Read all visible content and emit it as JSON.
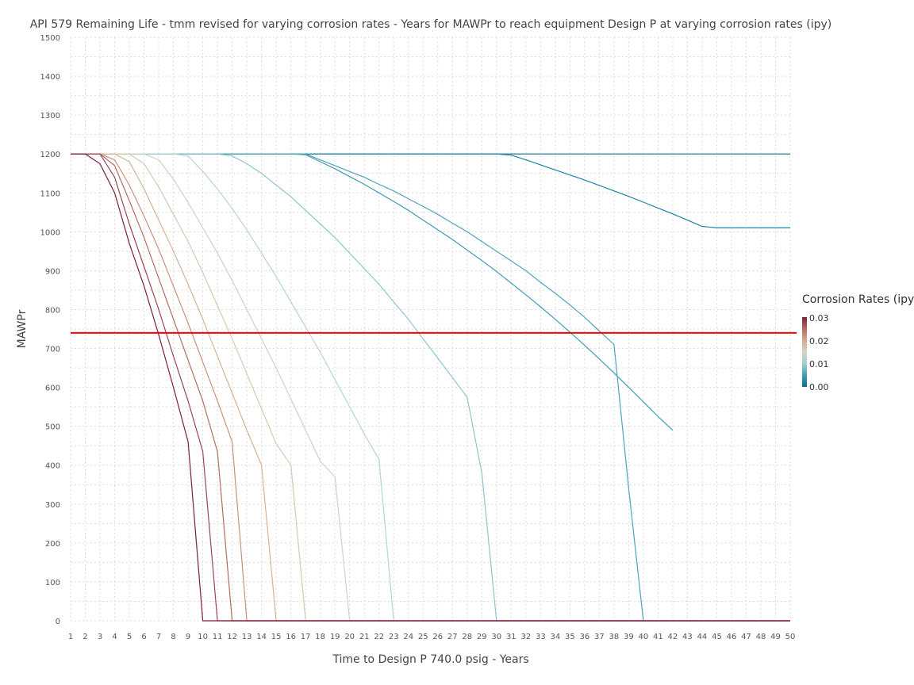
{
  "chart_data": {
    "type": "line",
    "title": "API 579 Remaining Life - tmm revised for varying corrosion rates - Years for MAWPr to reach equipment Design P at varying corrosion rates (ipy)",
    "xlabel": "Time to Design P 740.0 psig - Years",
    "ylabel": "MAWPr",
    "xlim": [
      1,
      50
    ],
    "ylim": [
      0,
      1500
    ],
    "x_ticks": [
      1,
      2,
      3,
      4,
      5,
      6,
      7,
      8,
      9,
      10,
      11,
      12,
      13,
      14,
      15,
      16,
      17,
      18,
      19,
      20,
      21,
      22,
      23,
      24,
      25,
      26,
      27,
      28,
      29,
      30,
      31,
      32,
      33,
      34,
      35,
      36,
      37,
      38,
      39,
      40,
      41,
      42,
      43,
      44,
      45,
      46,
      47,
      48,
      49,
      50
    ],
    "y_ticks": [
      0,
      100,
      200,
      300,
      400,
      500,
      600,
      700,
      800,
      900,
      1000,
      1100,
      1200,
      1300,
      1400,
      1500
    ],
    "grid": true,
    "reference_line": {
      "y": 740,
      "color": "#ff0000"
    },
    "legend": {
      "title": "Corrosion Rates (ipy)",
      "placement": "right",
      "ticks": [
        "0.03",
        "0.02",
        "0.01",
        "0.00"
      ],
      "colorscale": [
        "#0f6e96",
        "#3e9fb2",
        "#9fcfd2",
        "#d7d3c1",
        "#d4a98f",
        "#b56b62",
        "#7c1e3e"
      ]
    },
    "series": [
      {
        "rate": 0.03,
        "color": "#7c1e3e",
        "points": [
          [
            1,
            1200
          ],
          [
            2,
            1200
          ],
          [
            3,
            1175
          ],
          [
            4,
            1100
          ],
          [
            5,
            970
          ],
          [
            6,
            860
          ],
          [
            7,
            735
          ],
          [
            8,
            600
          ],
          [
            9,
            460
          ],
          [
            10,
            0
          ],
          [
            50,
            0
          ]
        ]
      },
      {
        "rate": 0.027,
        "color": "#9a4650",
        "points": [
          [
            1,
            1200
          ],
          [
            2,
            1200
          ],
          [
            3,
            1200
          ],
          [
            4,
            1140
          ],
          [
            5,
            1020
          ],
          [
            6,
            910
          ],
          [
            7,
            800
          ],
          [
            8,
            680
          ],
          [
            9,
            565
          ],
          [
            10,
            435
          ],
          [
            11,
            0
          ],
          [
            50,
            0
          ]
        ]
      },
      {
        "rate": 0.024,
        "color": "#b56b62",
        "points": [
          [
            1,
            1200
          ],
          [
            2,
            1200
          ],
          [
            3,
            1200
          ],
          [
            4,
            1170
          ],
          [
            5,
            1080
          ],
          [
            6,
            985
          ],
          [
            7,
            880
          ],
          [
            8,
            775
          ],
          [
            9,
            670
          ],
          [
            10,
            565
          ],
          [
            11,
            435
          ],
          [
            12,
            0
          ],
          [
            50,
            0
          ]
        ]
      },
      {
        "rate": 0.021,
        "color": "#c8917b",
        "points": [
          [
            1,
            1200
          ],
          [
            2,
            1200
          ],
          [
            3,
            1200
          ],
          [
            4,
            1185
          ],
          [
            5,
            1120
          ],
          [
            6,
            1040
          ],
          [
            7,
            955
          ],
          [
            8,
            860
          ],
          [
            9,
            765
          ],
          [
            10,
            665
          ],
          [
            11,
            565
          ],
          [
            12,
            460
          ],
          [
            13,
            0
          ],
          [
            50,
            0
          ]
        ]
      },
      {
        "rate": 0.018,
        "color": "#d4b296",
        "points": [
          [
            1,
            1200
          ],
          [
            2,
            1200
          ],
          [
            3,
            1200
          ],
          [
            4,
            1200
          ],
          [
            5,
            1180
          ],
          [
            6,
            1110
          ],
          [
            7,
            1030
          ],
          [
            8,
            950
          ],
          [
            9,
            865
          ],
          [
            10,
            775
          ],
          [
            11,
            680
          ],
          [
            12,
            585
          ],
          [
            13,
            490
          ],
          [
            14,
            400
          ],
          [
            15,
            0
          ],
          [
            50,
            0
          ]
        ]
      },
      {
        "rate": 0.015,
        "color": "#d6c9b2",
        "points": [
          [
            1,
            1200
          ],
          [
            2,
            1200
          ],
          [
            3,
            1200
          ],
          [
            4,
            1200
          ],
          [
            5,
            1200
          ],
          [
            6,
            1175
          ],
          [
            7,
            1115
          ],
          [
            8,
            1045
          ],
          [
            9,
            975
          ],
          [
            10,
            895
          ],
          [
            11,
            810
          ],
          [
            12,
            725
          ],
          [
            13,
            635
          ],
          [
            14,
            545
          ],
          [
            15,
            455
          ],
          [
            16,
            400
          ],
          [
            17,
            0
          ],
          [
            50,
            0
          ]
        ]
      },
      {
        "rate": 0.012,
        "color": "#cfd1c4",
        "points": [
          [
            1,
            1200
          ],
          [
            2,
            1200
          ],
          [
            3,
            1200
          ],
          [
            4,
            1200
          ],
          [
            5,
            1200
          ],
          [
            6,
            1200
          ],
          [
            7,
            1185
          ],
          [
            8,
            1135
          ],
          [
            9,
            1075
          ],
          [
            10,
            1010
          ],
          [
            11,
            945
          ],
          [
            12,
            875
          ],
          [
            13,
            800
          ],
          [
            14,
            725
          ],
          [
            15,
            650
          ],
          [
            16,
            570
          ],
          [
            17,
            490
          ],
          [
            18,
            410
          ],
          [
            19,
            370
          ],
          [
            20,
            0
          ],
          [
            50,
            0
          ]
        ]
      },
      {
        "rate": 0.009,
        "color": "#b4d5d3",
        "points": [
          [
            1,
            1200
          ],
          [
            2,
            1200
          ],
          [
            3,
            1200
          ],
          [
            4,
            1200
          ],
          [
            5,
            1200
          ],
          [
            6,
            1200
          ],
          [
            7,
            1200
          ],
          [
            8,
            1200
          ],
          [
            9,
            1195
          ],
          [
            10,
            1155
          ],
          [
            11,
            1110
          ],
          [
            12,
            1060
          ],
          [
            13,
            1005
          ],
          [
            14,
            945
          ],
          [
            15,
            885
          ],
          [
            16,
            820
          ],
          [
            17,
            755
          ],
          [
            18,
            690
          ],
          [
            19,
            620
          ],
          [
            20,
            550
          ],
          [
            21,
            480
          ],
          [
            22,
            415
          ],
          [
            23,
            0
          ],
          [
            50,
            0
          ]
        ]
      },
      {
        "rate": 0.006,
        "color": "#8ec5cc",
        "points": [
          [
            1,
            1200
          ],
          [
            2,
            1200
          ],
          [
            3,
            1200
          ],
          [
            4,
            1200
          ],
          [
            5,
            1200
          ],
          [
            6,
            1200
          ],
          [
            7,
            1200
          ],
          [
            8,
            1200
          ],
          [
            9,
            1200
          ],
          [
            10,
            1200
          ],
          [
            11,
            1200
          ],
          [
            12,
            1195
          ],
          [
            13,
            1175
          ],
          [
            14,
            1150
          ],
          [
            15,
            1120
          ],
          [
            16,
            1090
          ],
          [
            17,
            1055
          ],
          [
            18,
            1020
          ],
          [
            19,
            985
          ],
          [
            20,
            945
          ],
          [
            21,
            905
          ],
          [
            22,
            865
          ],
          [
            23,
            820
          ],
          [
            24,
            775
          ],
          [
            25,
            725
          ],
          [
            26,
            675
          ],
          [
            27,
            625
          ],
          [
            28,
            575
          ],
          [
            29,
            380
          ],
          [
            30,
            0
          ],
          [
            50,
            0
          ]
        ]
      },
      {
        "rate": 0.003,
        "color": "#4ea5ba",
        "points": [
          [
            1,
            1200
          ],
          [
            2,
            1200
          ],
          [
            3,
            1200
          ],
          [
            4,
            1200
          ],
          [
            5,
            1200
          ],
          [
            6,
            1200
          ],
          [
            7,
            1200
          ],
          [
            8,
            1200
          ],
          [
            9,
            1200
          ],
          [
            10,
            1200
          ],
          [
            11,
            1200
          ],
          [
            12,
            1200
          ],
          [
            13,
            1200
          ],
          [
            14,
            1200
          ],
          [
            15,
            1200
          ],
          [
            16,
            1200
          ],
          [
            17,
            1200
          ],
          [
            18,
            1185
          ],
          [
            19,
            1170
          ],
          [
            20,
            1155
          ],
          [
            21,
            1140
          ],
          [
            22,
            1122
          ],
          [
            23,
            1105
          ],
          [
            24,
            1085
          ],
          [
            25,
            1065
          ],
          [
            26,
            1045
          ],
          [
            27,
            1022
          ],
          [
            28,
            1000
          ],
          [
            29,
            975
          ],
          [
            30,
            950
          ],
          [
            31,
            925
          ],
          [
            32,
            900
          ],
          [
            33,
            870
          ],
          [
            34,
            842
          ],
          [
            35,
            812
          ],
          [
            36,
            780
          ],
          [
            37,
            745
          ],
          [
            38,
            710
          ],
          [
            39,
            340
          ],
          [
            40,
            0
          ],
          [
            50,
            0
          ]
        ]
      },
      {
        "rate": 0.002,
        "color": "#3e9cb4",
        "points": [
          [
            1,
            1200
          ],
          [
            2,
            1200
          ],
          [
            3,
            1200
          ],
          [
            4,
            1200
          ],
          [
            5,
            1200
          ],
          [
            6,
            1200
          ],
          [
            7,
            1200
          ],
          [
            8,
            1200
          ],
          [
            9,
            1200
          ],
          [
            10,
            1200
          ],
          [
            11,
            1200
          ],
          [
            12,
            1200
          ],
          [
            13,
            1200
          ],
          [
            14,
            1200
          ],
          [
            15,
            1200
          ],
          [
            16,
            1200
          ],
          [
            17,
            1198
          ],
          [
            18,
            1180
          ],
          [
            19,
            1162
          ],
          [
            20,
            1142
          ],
          [
            21,
            1122
          ],
          [
            22,
            1100
          ],
          [
            23,
            1078
          ],
          [
            24,
            1055
          ],
          [
            25,
            1030
          ],
          [
            26,
            1005
          ],
          [
            27,
            980
          ],
          [
            28,
            953
          ],
          [
            29,
            926
          ],
          [
            30,
            898
          ],
          [
            31,
            868
          ],
          [
            32,
            838
          ],
          [
            33,
            807
          ],
          [
            34,
            775
          ],
          [
            35,
            742
          ],
          [
            36,
            708
          ],
          [
            37,
            673
          ],
          [
            38,
            637
          ],
          [
            39,
            600
          ],
          [
            40,
            563
          ],
          [
            41,
            525
          ],
          [
            42,
            490
          ]
        ]
      },
      {
        "rate": 0.001,
        "color": "#1e82a6",
        "points": [
          [
            1,
            1200
          ],
          [
            2,
            1200
          ],
          [
            3,
            1200
          ],
          [
            4,
            1200
          ],
          [
            5,
            1200
          ],
          [
            6,
            1200
          ],
          [
            7,
            1200
          ],
          [
            8,
            1200
          ],
          [
            9,
            1200
          ],
          [
            10,
            1200
          ],
          [
            11,
            1200
          ],
          [
            12,
            1200
          ],
          [
            13,
            1200
          ],
          [
            14,
            1200
          ],
          [
            15,
            1200
          ],
          [
            16,
            1200
          ],
          [
            17,
            1200
          ],
          [
            18,
            1200
          ],
          [
            19,
            1200
          ],
          [
            20,
            1200
          ],
          [
            21,
            1200
          ],
          [
            22,
            1200
          ],
          [
            23,
            1200
          ],
          [
            24,
            1200
          ],
          [
            25,
            1200
          ],
          [
            26,
            1200
          ],
          [
            27,
            1200
          ],
          [
            28,
            1200
          ],
          [
            29,
            1200
          ],
          [
            30,
            1200
          ],
          [
            31,
            1197
          ],
          [
            32,
            1185
          ],
          [
            33,
            1172
          ],
          [
            34,
            1159
          ],
          [
            35,
            1146
          ],
          [
            36,
            1133
          ],
          [
            37,
            1119
          ],
          [
            38,
            1105
          ],
          [
            39,
            1091
          ],
          [
            40,
            1076
          ],
          [
            41,
            1061
          ],
          [
            42,
            1046
          ],
          [
            43,
            1030
          ],
          [
            44,
            1014
          ],
          [
            45,
            1010
          ],
          [
            50,
            1010
          ]
        ]
      },
      {
        "rate": 0.0,
        "color": "#0f6e96",
        "points": [
          [
            1,
            1200
          ],
          [
            50,
            1200
          ]
        ]
      }
    ]
  }
}
